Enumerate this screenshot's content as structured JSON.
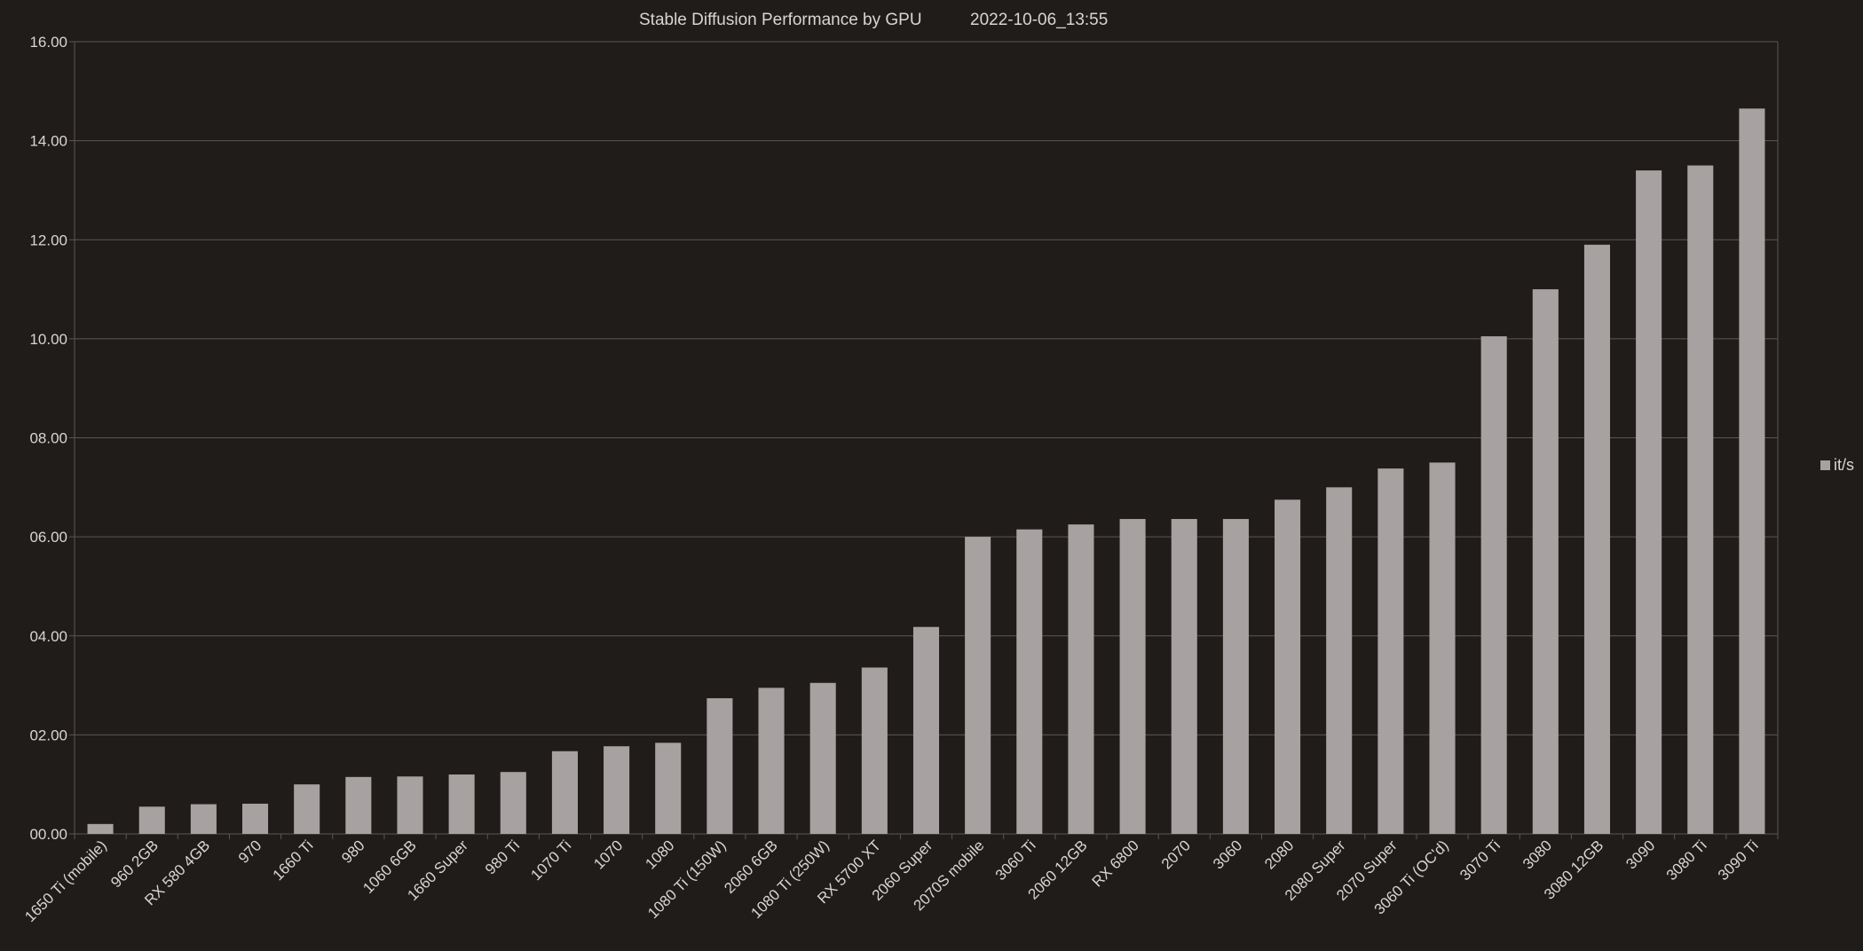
{
  "chart_data": {
    "type": "bar",
    "title": "Stable Diffusion Performance by GPU",
    "timestamp": "2022-10-06_13:55",
    "xlabel": "",
    "ylabel": "",
    "ylim": [
      0,
      16
    ],
    "yticks": [
      0,
      2,
      4,
      6,
      8,
      10,
      12,
      14,
      16
    ],
    "ytick_labels": [
      "00.00",
      "02.00",
      "04.00",
      "06.00",
      "08.00",
      "10.00",
      "12.00",
      "14.00",
      "16.00"
    ],
    "grid": true,
    "legend_position": "right",
    "categories": [
      "1650 Ti (mobile)",
      "960 2GB",
      "RX 580 4GB",
      "970",
      "1660 Ti",
      "980",
      "1060 6GB",
      "1660 Super",
      "980 Ti",
      "1070 Ti",
      "1070",
      "1080",
      "1080 Ti (150W)",
      "2060 6GB",
      "1080 Ti (250W)",
      "RX 5700 XT",
      "2060 Super",
      "2070S mobile",
      "3060 Ti",
      "2060 12GB",
      "RX 6800",
      "2070",
      "3060",
      "2080",
      "2080 Super",
      "2070 Super",
      "3060 Ti (OC'd)",
      "3070 Ti",
      "3080",
      "3080 12GB",
      "3090",
      "3080 Ti",
      "3090 Ti"
    ],
    "series": [
      {
        "name": "it/s",
        "color": "#a7a1a1",
        "values": [
          0.2,
          0.55,
          0.6,
          0.61,
          1.0,
          1.15,
          1.16,
          1.2,
          1.25,
          1.67,
          1.77,
          1.84,
          2.74,
          2.95,
          3.05,
          3.36,
          4.18,
          6.0,
          6.15,
          6.25,
          6.36,
          6.36,
          6.36,
          6.75,
          7.0,
          7.38,
          7.5,
          10.05,
          11.0,
          11.9,
          13.4,
          13.5,
          14.65
        ]
      }
    ]
  },
  "colors": {
    "background": "#201c19",
    "grid": "#5b5653",
    "text": "#d8d5d2",
    "bar": "#a7a1a1"
  }
}
